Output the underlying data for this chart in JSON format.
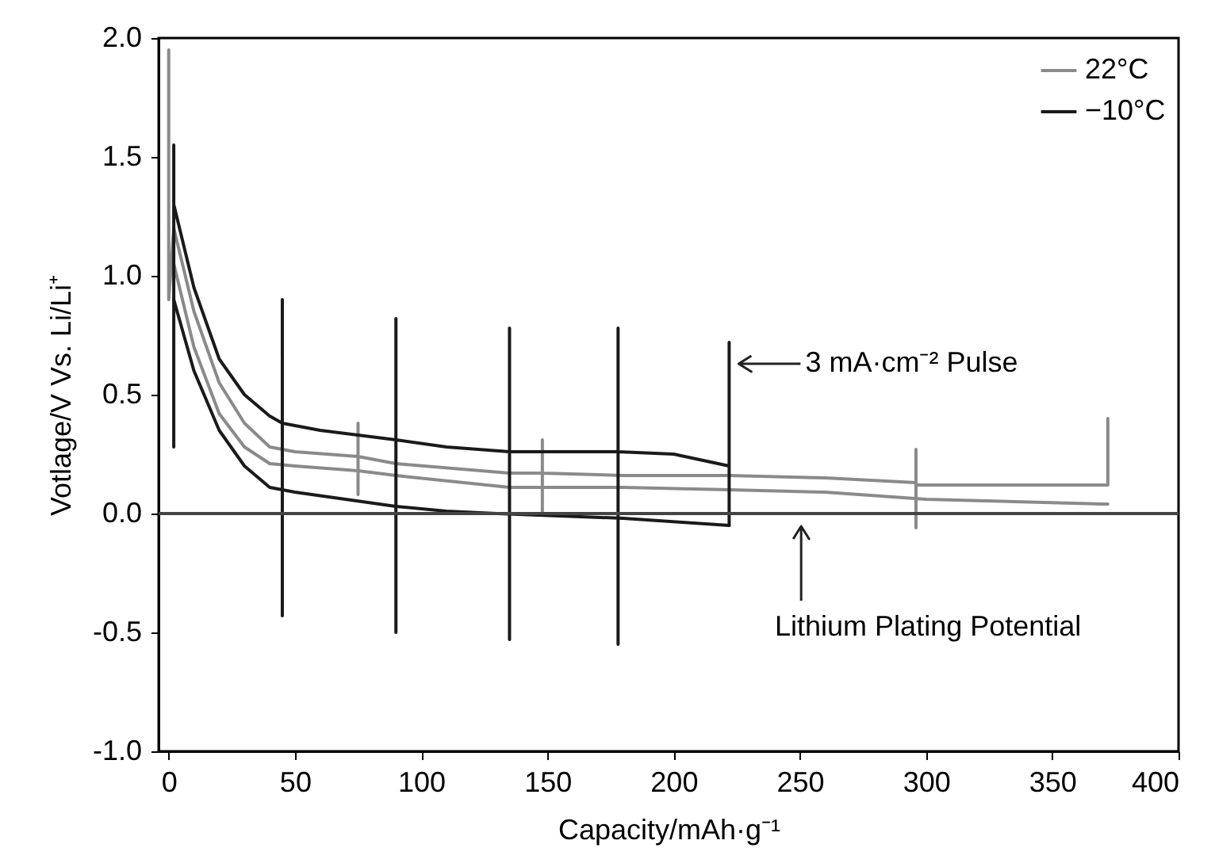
{
  "chart_data": {
    "type": "line",
    "xlabel": "Capacity/mAh·g⁻¹",
    "ylabel": "Votlage/V Vs. Li/Li⁺",
    "xlim": [
      -4,
      400
    ],
    "xticks": [
      0,
      50,
      100,
      150,
      200,
      250,
      300,
      350,
      400
    ],
    "ylim": [
      -1,
      2
    ],
    "yticks": [
      {
        "value": -1,
        "label": "-1.0"
      },
      {
        "value": -0.5,
        "label": "-0.5"
      },
      {
        "value": 0,
        "label": "0.0"
      },
      0.5,
      {
        "value": 1,
        "label": "1.0"
      },
      1.5,
      {
        "value": 2,
        "label": "2.0"
      }
    ],
    "legend": "top right",
    "grid": false,
    "marker": "none",
    "line_style": "solid",
    "series": [
      {
        "name": "22°C",
        "color": "#8a8a8a",
        "x": [
          0,
          0,
          2,
          10,
          20,
          30,
          40,
          50,
          75,
          75,
          75,
          75,
          90,
          135,
          148,
          148,
          148,
          148,
          180,
          222,
          260,
          296,
          296,
          296,
          296,
          370,
          372,
          372
        ],
        "values": [
          1.95,
          0.9,
          1.2,
          0.85,
          0.55,
          0.38,
          0.28,
          0.26,
          0.24,
          0.38,
          0.08,
          0.24,
          0.21,
          0.17,
          0.17,
          0.31,
          0.0,
          0.17,
          0.16,
          0.16,
          0.15,
          0.13,
          0.27,
          -0.06,
          0.12,
          0.12,
          0.12,
          0.4
        ]
      },
      {
        "color": "#8a8a8a",
        "x": [
          2,
          10,
          20,
          30,
          40,
          50,
          75,
          90,
          135,
          180,
          222,
          260,
          300,
          370,
          372
        ],
        "values": [
          1.05,
          0.7,
          0.42,
          0.28,
          0.21,
          0.2,
          0.18,
          0.16,
          0.11,
          0.11,
          0.1,
          0.09,
          0.06,
          0.04,
          0.04
        ]
      },
      {
        "name": "−10°C",
        "color": "#1a1a1a",
        "x": [
          2,
          2,
          2,
          10,
          20,
          30,
          40,
          45,
          45,
          45,
          45,
          60,
          75,
          90,
          90,
          90,
          90,
          110,
          135,
          135,
          135,
          135,
          178,
          178,
          178,
          178,
          200,
          222,
          222,
          222
        ],
        "values": [
          1.55,
          0.28,
          1.3,
          0.95,
          0.65,
          0.5,
          0.41,
          0.38,
          0.9,
          -0.43,
          0.38,
          0.35,
          0.33,
          0.31,
          0.82,
          -0.5,
          0.31,
          0.28,
          0.26,
          0.78,
          -0.53,
          0.26,
          0.26,
          0.78,
          -0.55,
          0.26,
          0.25,
          0.2,
          0.72,
          -0.05
        ]
      },
      {
        "color": "#1a1a1a",
        "x": [
          2,
          10,
          20,
          30,
          40,
          50,
          70,
          90,
          110,
          130,
          180,
          222
        ],
        "values": [
          0.9,
          0.6,
          0.35,
          0.2,
          0.11,
          0.09,
          0.06,
          0.03,
          0.01,
          0,
          -0.02,
          -0.05
        ]
      }
    ],
    "ref_lines": [
      {
        "axis": "y",
        "value": 0,
        "color": "#444444"
      }
    ],
    "annotations": [
      {
        "text": "3 mA·cm⁻² Pulse",
        "x": 222,
        "y": 0.63
      },
      "Lithium Plating Potential"
    ]
  }
}
